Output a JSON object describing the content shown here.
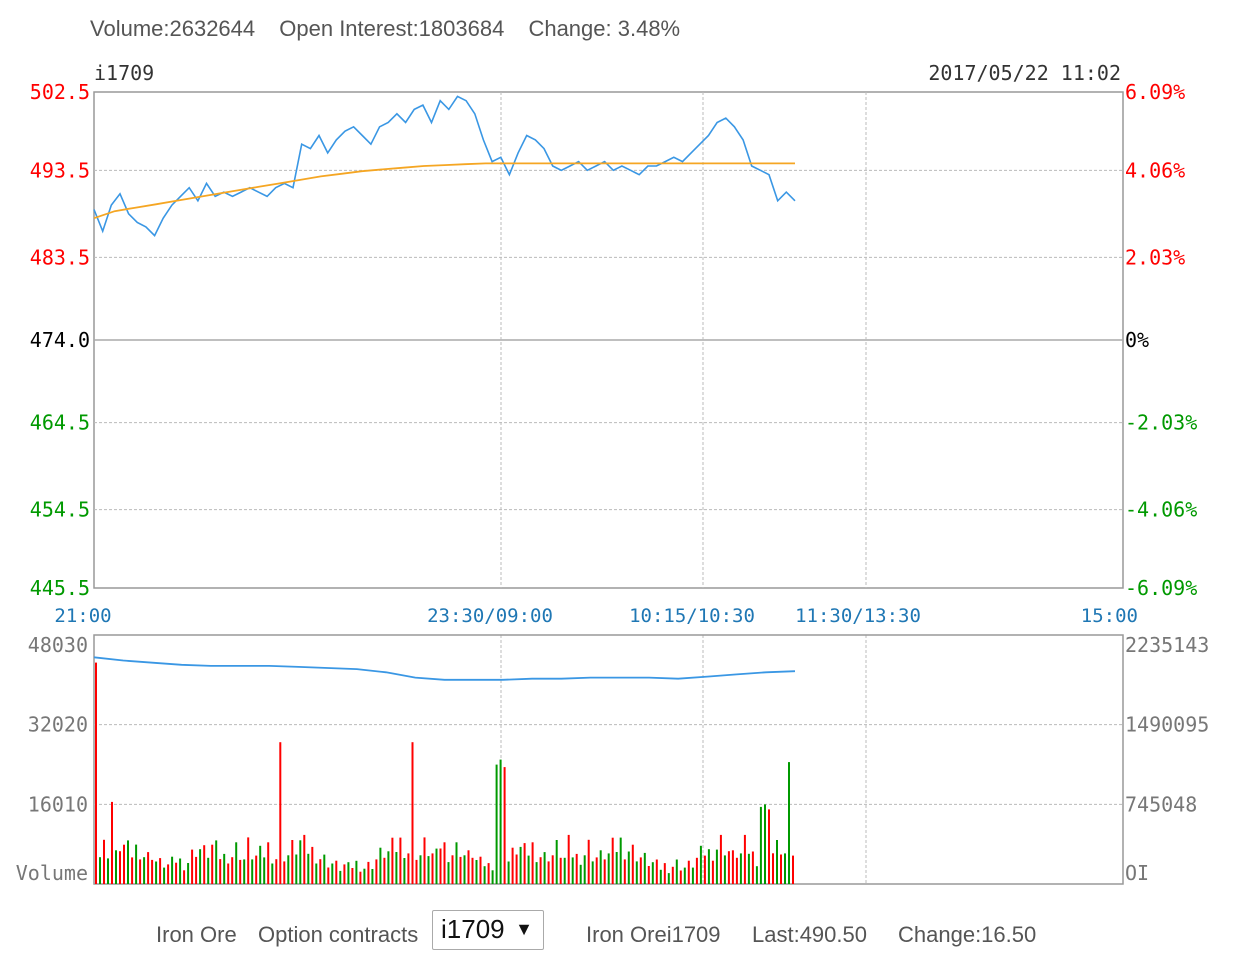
{
  "header": {
    "volume": "Volume:2632644",
    "open_interest": "Open Interest:1803684",
    "change": "Change: 3.48%"
  },
  "chart_data": [
    {
      "type": "line",
      "symbol": "i1709",
      "datetime": "2017/05/22 11:02",
      "ylim": [
        445.5,
        502.5
      ],
      "base": 474.0,
      "y_ticks": [
        "502.5",
        "493.5",
        "483.5",
        "474.0",
        "464.5",
        "454.5",
        "445.5"
      ],
      "y_ticks_right": [
        "6.09%",
        "4.06%",
        "2.03%",
        "0%",
        "-2.03%",
        "-4.06%",
        "-6.09%"
      ],
      "x_ticks": [
        "21:00",
        "23:30/09:00",
        "10:15/10:30",
        "11:30/13:30",
        "15:00"
      ],
      "series": [
        {
          "values": [
            489,
            486.5,
            489.5,
            490.8,
            488.5,
            487.5,
            487,
            486,
            488,
            489.5,
            490.5,
            491.5,
            490,
            492,
            490.5,
            491,
            490.5,
            491,
            491.5,
            491,
            490.5,
            491.5,
            492,
            491.5,
            496.5,
            496,
            497.5,
            495.5,
            497,
            498,
            498.5,
            497.5,
            496.5,
            498.5,
            499,
            500,
            499,
            500.5,
            501,
            499,
            501.5,
            500.5,
            502,
            501.5,
            500,
            497,
            494.5,
            495,
            493,
            495.5,
            497.5,
            497,
            496,
            494,
            493.5,
            494,
            494.5,
            493.5,
            494,
            494.5,
            493.5,
            494,
            493.5,
            493,
            494,
            494,
            494.5,
            495,
            494.5,
            495.5,
            496.5,
            497.5,
            499,
            499.5,
            498.5,
            497,
            494,
            493.5,
            493,
            490,
            491,
            490
          ],
          "color": "#3a97e4"
        },
        {
          "values": [
            488,
            488.8,
            489.2,
            489.6,
            490,
            490.4,
            490.8,
            491.2,
            491.6,
            492,
            492.4,
            492.8,
            493.1,
            493.4,
            493.6,
            493.8,
            494,
            494.1,
            494.2,
            494.3,
            494.3,
            494.3,
            494.3,
            494.3,
            494.3,
            494.3,
            494.3,
            494.3,
            494.3,
            494.3,
            494.3,
            494.3,
            494.3,
            494.3,
            494.3
          ],
          "color": "#f5a623"
        }
      ],
      "colors": {
        "up": "#ff0000",
        "down": "#009900",
        "flat": "#000000",
        "time": "#1f77b4"
      }
    },
    {
      "type": "bar",
      "y_ticks_left": [
        "48030",
        "32020",
        "16010",
        "Volume"
      ],
      "y_ticks_right": [
        "2235143",
        "1490095",
        "745048",
        "OI"
      ],
      "ylim": [
        0,
        48030
      ],
      "oi_ylim": [
        0,
        2235143
      ],
      "volume_values": [
        8000,
        7000,
        9000,
        8500,
        7000,
        6500,
        10000,
        9000,
        8000,
        7500,
        8500,
        9000,
        7000,
        6500,
        8000,
        5500,
        5000,
        5000,
        4500,
        5000,
        6000,
        5500,
        5000,
        5500,
        7000,
        9000,
        8500,
        7500,
        8000,
        9000,
        8000,
        7000,
        6500,
        7500,
        7000,
        8500,
        8000,
        6000,
        9000,
        7500,
        6500,
        7000,
        7500,
        9000,
        7500,
        6500,
        6500,
        7500,
        7000,
        8500,
        9000,
        10000,
        9000,
        8500,
        8000,
        7500,
        6500,
        6000,
        5500,
        5000,
        4500,
        4000,
        4500,
        4000,
        4500,
        5000,
        4500,
        4000,
        4500,
        5000,
        6000,
        7000,
        8000,
        7500,
        8500,
        9000,
        10000,
        9500,
        8000,
        6500
      ],
      "volume_colors": [
        "r",
        "g",
        "r",
        "g",
        "r",
        "g",
        "r",
        "r",
        "g",
        "r",
        "g",
        "r",
        "g",
        "r",
        "r",
        "g",
        "r",
        "g",
        "r",
        "g",
        "r",
        "g",
        "r",
        "g",
        "r",
        "r",
        "g",
        "r",
        "g",
        "r",
        "g",
        "r",
        "g",
        "r",
        "r",
        "g",
        "r",
        "g",
        "r",
        "g",
        "r",
        "g",
        "g",
        "r",
        "g",
        "r",
        "g",
        "r",
        "g",
        "r",
        "g",
        "g",
        "r",
        "g",
        "r",
        "g",
        "r",
        "g",
        "r",
        "g",
        "r",
        "g",
        "r",
        "g",
        "r",
        "g",
        "r",
        "g",
        "r",
        "g",
        "r",
        "g",
        "r",
        "g",
        "r",
        "g",
        "r",
        "g",
        "r",
        "r"
      ],
      "volume_spikes": [
        [
          0,
          44500,
          "r"
        ],
        [
          4,
          16500,
          "r"
        ],
        [
          46,
          28500,
          "r"
        ],
        [
          79,
          28500,
          "r"
        ],
        [
          100,
          24000,
          "g"
        ],
        [
          101,
          25000,
          "g"
        ],
        [
          102,
          23500,
          "r"
        ],
        [
          166,
          15500,
          "g"
        ],
        [
          167,
          16000,
          "g"
        ],
        [
          173,
          24500,
          "g"
        ],
        [
          168,
          15000,
          "r"
        ]
      ],
      "oi_values": [
        2120000,
        2090000,
        2070000,
        2050000,
        2040000,
        2040000,
        2040000,
        2030000,
        2020000,
        2010000,
        1980000,
        1930000,
        1910000,
        1910000,
        1910000,
        1920000,
        1920000,
        1930000,
        1930000,
        1930000,
        1920000,
        1940000,
        1960000,
        1980000,
        1990000
      ],
      "colors": {
        "volume_up": "#ff0000",
        "volume_down": "#009900",
        "oi": "#3a97e4"
      }
    }
  ],
  "footer": {
    "product_label": "Iron Ore",
    "option_label": "Option contracts",
    "select_value": "i1709",
    "select_arrow": "▼",
    "quote_name": "Iron Orei1709",
    "last": "Last:490.50",
    "change": "Change:16.50"
  }
}
